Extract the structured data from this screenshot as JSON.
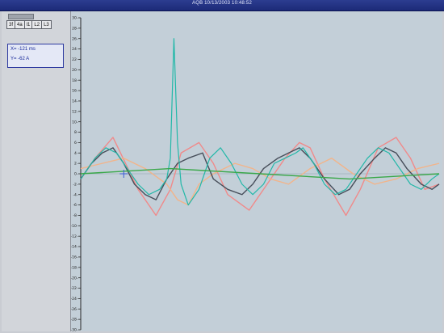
{
  "window": {
    "title": "AQB 10/13/2003 10:48:52"
  },
  "left_panel": {
    "channel_tabs": [
      "3f",
      "4a",
      "l1",
      "L2",
      "L3"
    ],
    "cursor_readout": {
      "x_text": "X= -121 ms",
      "y_text": "Y= -62 A"
    }
  },
  "colors": {
    "plot_bg": "#c3cfd8",
    "red": "#f08a8a",
    "orange": "#f2b48a",
    "teal": "#22b8a8",
    "dark": "#474e5a",
    "green": "#3aa84a",
    "crosshair": "#3b5bd6"
  },
  "chart_data": {
    "type": "line",
    "title": "",
    "xlabel": "",
    "ylabel": "",
    "ylim": [
      -30,
      30
    ],
    "y_ticks": [
      -30,
      -28,
      -26,
      -24,
      -22,
      -20,
      -18,
      -16,
      -14,
      -12,
      -10,
      -8,
      -6,
      -4,
      -2,
      0,
      2,
      4,
      6,
      8,
      10,
      12,
      14,
      16,
      18,
      20,
      22,
      24,
      26,
      28,
      30
    ],
    "y_tick_labels": [
      "-30-",
      "-28-",
      "-26-",
      "-24-",
      "-22-",
      "-20-",
      "-18-",
      "-16-",
      "-14-",
      "-12-",
      "-10-",
      "-8-",
      "-6-",
      "-4-",
      "-2-",
      "0-",
      "2-",
      "4-",
      "6-",
      "8-",
      "10-",
      "12-",
      "14-",
      "16-",
      "18-",
      "20-",
      "22-",
      "24-",
      "26-",
      "28-",
      "30-"
    ],
    "x_range": [
      0,
      100
    ],
    "series": [
      {
        "color": "#f08a8a",
        "points": [
          [
            0,
            -1
          ],
          [
            4,
            3
          ],
          [
            9,
            7
          ],
          [
            16,
            -3
          ],
          [
            21,
            -8
          ],
          [
            25,
            -3
          ],
          [
            28,
            4
          ],
          [
            33,
            6
          ],
          [
            37,
            2
          ],
          [
            41,
            -4
          ],
          [
            47,
            -7
          ],
          [
            52,
            -2
          ],
          [
            57,
            3
          ],
          [
            61,
            6
          ],
          [
            64,
            5
          ],
          [
            68,
            -1
          ],
          [
            74,
            -8
          ],
          [
            78,
            -3
          ],
          [
            83,
            5
          ],
          [
            88,
            7
          ],
          [
            92,
            3
          ],
          [
            96,
            -3
          ],
          [
            100,
            -2
          ]
        ]
      },
      {
        "color": "#f2b48a",
        "points": [
          [
            0,
            1
          ],
          [
            6,
            2
          ],
          [
            12,
            3
          ],
          [
            18,
            1
          ],
          [
            24,
            -2
          ],
          [
            27,
            -5
          ],
          [
            30,
            -6
          ],
          [
            33,
            -2
          ],
          [
            37,
            0
          ],
          [
            43,
            2
          ],
          [
            48,
            1
          ],
          [
            53,
            -1
          ],
          [
            58,
            -2
          ],
          [
            64,
            1
          ],
          [
            70,
            3
          ],
          [
            76,
            0
          ],
          [
            82,
            -2
          ],
          [
            88,
            -1
          ],
          [
            94,
            1
          ],
          [
            100,
            2
          ]
        ]
      },
      {
        "color": "#474e5a",
        "points": [
          [
            0,
            -1
          ],
          [
            3,
            2
          ],
          [
            6,
            4
          ],
          [
            9,
            5
          ],
          [
            12,
            2
          ],
          [
            15,
            -2
          ],
          [
            18,
            -4
          ],
          [
            21,
            -5
          ],
          [
            24,
            -1
          ],
          [
            27,
            2
          ],
          [
            30,
            3
          ],
          [
            34,
            4
          ],
          [
            37,
            -1
          ],
          [
            41,
            -3
          ],
          [
            45,
            -4
          ],
          [
            48,
            -2
          ],
          [
            51,
            1
          ],
          [
            55,
            3
          ],
          [
            58,
            4
          ],
          [
            61,
            5
          ],
          [
            64,
            3
          ],
          [
            68,
            -1
          ],
          [
            72,
            -4
          ],
          [
            75,
            -3
          ],
          [
            78,
            0
          ],
          [
            82,
            3
          ],
          [
            85,
            5
          ],
          [
            88,
            4
          ],
          [
            91,
            1
          ],
          [
            95,
            -2
          ],
          [
            98,
            -3
          ],
          [
            100,
            -2
          ]
        ]
      },
      {
        "color": "#22b8a8",
        "points": [
          [
            0,
            -1
          ],
          [
            4,
            3
          ],
          [
            7,
            5
          ],
          [
            10,
            4
          ],
          [
            13,
            1
          ],
          [
            16,
            -2
          ],
          [
            19,
            -4
          ],
          [
            22,
            -3
          ],
          [
            24,
            -1
          ],
          [
            25,
            3
          ],
          [
            26,
            26
          ],
          [
            27,
            6
          ],
          [
            28,
            -2
          ],
          [
            30,
            -6
          ],
          [
            33,
            -3
          ],
          [
            36,
            3
          ],
          [
            39,
            5
          ],
          [
            42,
            2
          ],
          [
            45,
            -2
          ],
          [
            48,
            -4
          ],
          [
            51,
            -2
          ],
          [
            54,
            2
          ],
          [
            57,
            3
          ],
          [
            60,
            4
          ],
          [
            62,
            5
          ],
          [
            65,
            2
          ],
          [
            68,
            -2
          ],
          [
            71,
            -4
          ],
          [
            74,
            -3
          ],
          [
            77,
            0
          ],
          [
            80,
            3
          ],
          [
            83,
            5
          ],
          [
            86,
            4
          ],
          [
            89,
            1
          ],
          [
            92,
            -2
          ],
          [
            95,
            -3
          ],
          [
            98,
            -1
          ],
          [
            100,
            0
          ]
        ]
      },
      {
        "color": "#3aa84a",
        "points": [
          [
            0,
            0
          ],
          [
            25,
            1
          ],
          [
            50,
            0
          ],
          [
            75,
            -1
          ],
          [
            100,
            0
          ]
        ]
      }
    ],
    "crosshair": {
      "x": 12,
      "y": 0
    },
    "grid": false,
    "legend": "none"
  }
}
